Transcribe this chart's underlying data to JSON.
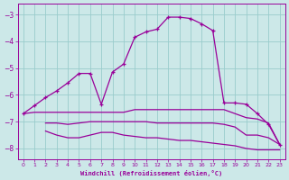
{
  "xlabel": "Windchill (Refroidissement éolien,°C)",
  "background_color": "#cce8e8",
  "grid_color": "#99cccc",
  "line_color": "#990099",
  "xlim": [
    -0.5,
    23.5
  ],
  "ylim": [
    -8.4,
    -2.6
  ],
  "yticks": [
    -8,
    -7,
    -6,
    -5,
    -4,
    -3
  ],
  "xticks": [
    0,
    1,
    2,
    3,
    4,
    5,
    6,
    7,
    8,
    9,
    10,
    11,
    12,
    13,
    14,
    15,
    16,
    17,
    18,
    19,
    20,
    21,
    22,
    23
  ],
  "curve1_x": [
    0,
    1,
    2,
    3,
    4,
    5,
    6,
    7,
    8,
    9,
    10,
    11,
    12,
    13,
    14,
    15,
    16,
    17,
    18,
    19,
    20,
    21,
    22,
    23
  ],
  "curve1_y": [
    -6.7,
    -6.4,
    -6.1,
    -5.85,
    -5.55,
    -5.2,
    -5.2,
    -6.35,
    -5.15,
    -4.85,
    -3.85,
    -3.65,
    -3.55,
    -3.1,
    -3.1,
    -3.15,
    -3.35,
    -3.6,
    -6.3,
    -6.3,
    -6.35,
    -6.7,
    -7.1,
    -7.85
  ],
  "curve2_x": [
    0,
    1,
    2,
    3,
    4,
    5,
    6,
    7,
    8,
    9,
    10,
    11,
    12,
    13,
    14,
    15,
    16,
    17,
    18,
    19,
    20,
    21,
    22,
    23
  ],
  "curve2_y": [
    -6.7,
    -6.65,
    -6.65,
    -6.65,
    -6.65,
    -6.65,
    -6.65,
    -6.65,
    -6.65,
    -6.65,
    -6.55,
    -6.55,
    -6.55,
    -6.55,
    -6.55,
    -6.55,
    -6.55,
    -6.55,
    -6.55,
    -6.7,
    -6.85,
    -6.9,
    -7.05,
    -7.85
  ],
  "curve3_x": [
    2,
    3,
    4,
    5,
    6,
    7,
    8,
    9,
    10,
    11,
    12,
    13,
    14,
    15,
    16,
    17,
    18,
    19,
    20,
    21,
    22,
    23
  ],
  "curve3_y": [
    -7.05,
    -7.05,
    -7.1,
    -7.05,
    -7.0,
    -7.0,
    -7.0,
    -7.0,
    -7.0,
    -7.0,
    -7.05,
    -7.05,
    -7.05,
    -7.05,
    -7.05,
    -7.05,
    -7.1,
    -7.2,
    -7.5,
    -7.5,
    -7.6,
    -7.85
  ],
  "curve4_x": [
    2,
    3,
    4,
    5,
    6,
    7,
    8,
    9,
    10,
    11,
    12,
    13,
    14,
    15,
    16,
    17,
    18,
    19,
    20,
    21,
    22,
    23
  ],
  "curve4_y": [
    -7.35,
    -7.5,
    -7.6,
    -7.6,
    -7.5,
    -7.4,
    -7.4,
    -7.5,
    -7.55,
    -7.6,
    -7.6,
    -7.65,
    -7.7,
    -7.7,
    -7.75,
    -7.8,
    -7.85,
    -7.9,
    -8.0,
    -8.05,
    -8.05,
    -8.05
  ]
}
